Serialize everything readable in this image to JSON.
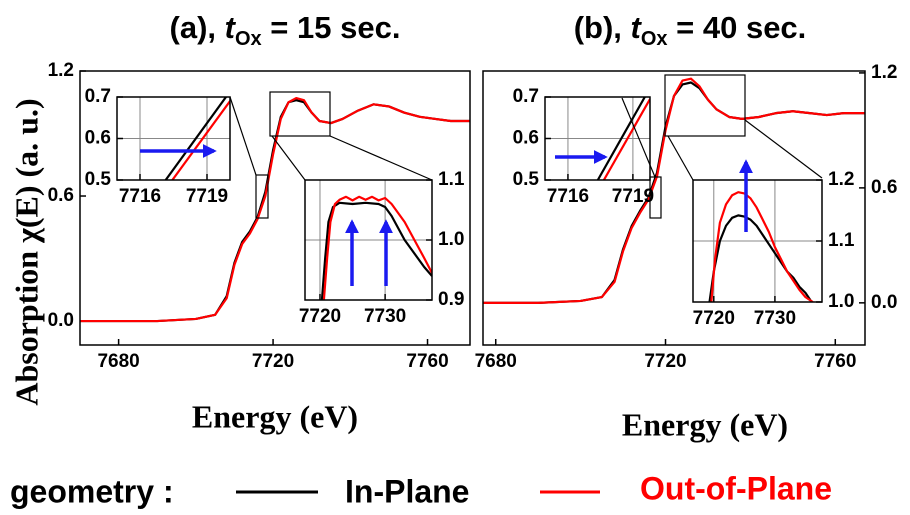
{
  "chart_data": [
    {
      "type": "line",
      "title_parts": [
        "(a), ",
        "t",
        "Ox",
        " = 15 sec."
      ],
      "xlabel": "Energy (eV)",
      "ylabel": "Absorption χ(E) (a. u.)",
      "legend_title": "geometry :",
      "x": [
        7670,
        7680,
        7690,
        7700,
        7705,
        7708,
        7710,
        7712,
        7714,
        7716,
        7718,
        7720,
        7722,
        7724,
        7726,
        7728,
        7730,
        7732,
        7735,
        7738,
        7742,
        7746,
        7750,
        7754,
        7758,
        7762,
        7766,
        7771
      ],
      "series": [
        {
          "name": "In-Plane",
          "color": "#000000",
          "values": [
            0,
            0,
            0,
            0.01,
            0.03,
            0.12,
            0.28,
            0.38,
            0.43,
            0.5,
            0.62,
            0.82,
            0.98,
            1.05,
            1.06,
            1.05,
            1.0,
            0.96,
            0.95,
            0.97,
            1.01,
            1.04,
            1.03,
            1.0,
            0.98,
            0.97,
            0.96,
            0.96
          ]
        },
        {
          "name": "Out-of-Plane",
          "color": "#ff0000",
          "values": [
            0,
            0,
            0,
            0.01,
            0.03,
            0.11,
            0.27,
            0.37,
            0.42,
            0.49,
            0.6,
            0.8,
            0.97,
            1.05,
            1.07,
            1.06,
            1.0,
            0.96,
            0.95,
            0.97,
            1.01,
            1.04,
            1.03,
            1.0,
            0.98,
            0.97,
            0.96,
            0.96
          ]
        }
      ],
      "xlim": [
        7670,
        7771
      ],
      "ylim": [
        -0.115,
        1.2
      ],
      "xticks": [
        7680,
        7720,
        7760
      ],
      "yticks": [
        {
          "value": 0,
          "label": "0.0"
        },
        0.6,
        1.2
      ],
      "y_axis_side": "left",
      "grid": false
    },
    {
      "type": "line",
      "series": [
        {
          "name": "In-Plane",
          "color": "#000000",
          "x": [
            7717.15,
            7719.85
          ],
          "values": [
            0.5,
            0.7
          ]
        },
        {
          "name": "Out-of-Plane",
          "color": "#ff0000",
          "x": [
            7717.45,
            7720.03
          ],
          "values": [
            0.5,
            0.69
          ]
        }
      ],
      "xlim": [
        7714.97,
        7720.03
      ],
      "ylim": [
        0.5,
        0.7
      ],
      "xticks": [
        7716,
        7719
      ],
      "yticks": [
        0.5,
        0.6,
        0.7
      ],
      "y_axis_side": "left",
      "grid": true
    },
    {
      "type": "line",
      "series": [
        {
          "name": "In-Plane",
          "color": "#000000",
          "x": [
            7720.3,
            7720.8,
            7721.3,
            7722,
            7723,
            7725,
            7727,
            7729,
            7730,
            7731,
            7732,
            7733,
            7734,
            7735,
            7736,
            7737.2
          ],
          "values": [
            0.9,
            0.97,
            1.03,
            1.055,
            1.062,
            1.06,
            1.062,
            1.06,
            1.055,
            1.04,
            1.02,
            1.0,
            0.985,
            0.97,
            0.955,
            0.94
          ]
        },
        {
          "name": "Out-of-Plane",
          "color": "#ff0000",
          "x": [
            7720.6,
            7721.1,
            7721.6,
            7722.3,
            7723,
            7724,
            7725,
            7726,
            7727,
            7728,
            7729,
            7730,
            7731,
            7732,
            7733,
            7734,
            7735,
            7736,
            7737.2
          ],
          "values": [
            0.9,
            0.97,
            1.03,
            1.06,
            1.067,
            1.072,
            1.066,
            1.072,
            1.067,
            1.072,
            1.066,
            1.07,
            1.06,
            1.045,
            1.03,
            1.01,
            0.99,
            0.97,
            0.945
          ]
        }
      ],
      "xlim": [
        7717.7,
        7737.2
      ],
      "ylim": [
        0.9,
        1.1
      ],
      "xticks": [
        7720,
        7730
      ],
      "yticks": [
        0.9,
        {
          "value": 1,
          "label": "1.0"
        },
        1.1
      ],
      "y_axis_side": "right",
      "grid": true
    },
    {
      "type": "line",
      "title_parts": [
        "(b), ",
        "t",
        "Ox",
        " = 40 sec."
      ],
      "xlabel": "Energy (eV)",
      "x": [
        7677,
        7690,
        7700,
        7705,
        7708,
        7710,
        7712,
        7714,
        7716,
        7718,
        7720,
        7722,
        7724,
        7726,
        7728,
        7730,
        7732,
        7735,
        7738,
        7742,
        7746,
        7750,
        7754,
        7758,
        7762,
        7767
      ],
      "series": [
        {
          "name": "In-Plane",
          "color": "#000000",
          "values": [
            0,
            0,
            0.01,
            0.03,
            0.12,
            0.28,
            0.4,
            0.48,
            0.55,
            0.68,
            0.92,
            1.08,
            1.14,
            1.15,
            1.12,
            1.06,
            1.01,
            0.97,
            0.96,
            0.97,
            0.99,
            1.0,
            0.99,
            0.98,
            0.99,
            0.99
          ]
        },
        {
          "name": "Out-of-Plane",
          "color": "#ff0000",
          "values": [
            0,
            0,
            0.01,
            0.03,
            0.11,
            0.27,
            0.39,
            0.47,
            0.54,
            0.66,
            0.9,
            1.08,
            1.16,
            1.17,
            1.13,
            1.06,
            1.01,
            0.97,
            0.96,
            0.97,
            0.99,
            1.0,
            0.99,
            0.98,
            0.99,
            0.99
          ]
        }
      ],
      "xlim": [
        7677,
        7767
      ],
      "ylim": [
        -0.22,
        1.21
      ],
      "xticks": [
        7680,
        7720,
        7760
      ],
      "yticks": [
        {
          "value": 0,
          "label": "0.0"
        },
        0.6,
        1.2
      ],
      "y_axis_side": "right",
      "grid": false
    },
    {
      "type": "line",
      "series": [
        {
          "name": "In-Plane",
          "color": "#000000",
          "x": [
            7717.38,
            7719.55
          ],
          "values": [
            0.5,
            0.7
          ]
        },
        {
          "name": "Out-of-Plane",
          "color": "#ff0000",
          "x": [
            7717.66,
            7719.79
          ],
          "values": [
            0.5,
            0.695
          ]
        }
      ],
      "xlim": [
        7714.94,
        7719.79
      ],
      "ylim": [
        0.5,
        0.7
      ],
      "xticks": [
        7716,
        7719
      ],
      "yticks": [
        0.5,
        0.6,
        0.7
      ],
      "y_axis_side": "left",
      "grid": true
    },
    {
      "type": "line",
      "series": [
        {
          "name": "In-Plane",
          "color": "#000000",
          "x": [
            7719.3,
            7720,
            7721,
            7722,
            7723,
            7724,
            7725,
            7726,
            7727,
            7728,
            7729,
            7730,
            7731,
            7732,
            7733,
            7734,
            7735,
            7736
          ],
          "values": [
            1.0,
            1.05,
            1.1,
            1.125,
            1.138,
            1.142,
            1.14,
            1.135,
            1.125,
            1.11,
            1.095,
            1.08,
            1.065,
            1.05,
            1.04,
            1.025,
            1.015,
            1.0
          ]
        },
        {
          "name": "Out-of-Plane",
          "color": "#ff0000",
          "x": [
            7719.6,
            7720.2,
            7721,
            7722,
            7723,
            7724,
            7725,
            7726,
            7727,
            7728,
            7729,
            7730,
            7731,
            7732,
            7733,
            7734,
            7735,
            7736.2
          ],
          "values": [
            1.0,
            1.07,
            1.13,
            1.16,
            1.175,
            1.18,
            1.178,
            1.17,
            1.155,
            1.135,
            1.115,
            1.09,
            1.07,
            1.05,
            1.035,
            1.02,
            1.008,
            1.0
          ]
        }
      ],
      "xlim": [
        7716.6,
        7737.7
      ],
      "ylim": [
        1.0,
        1.2
      ],
      "xticks": [
        7720,
        7730
      ],
      "yticks": [
        {
          "value": 1,
          "label": "1.0"
        },
        1.1,
        1.2
      ],
      "y_axis_side": "right",
      "grid": true
    }
  ]
}
